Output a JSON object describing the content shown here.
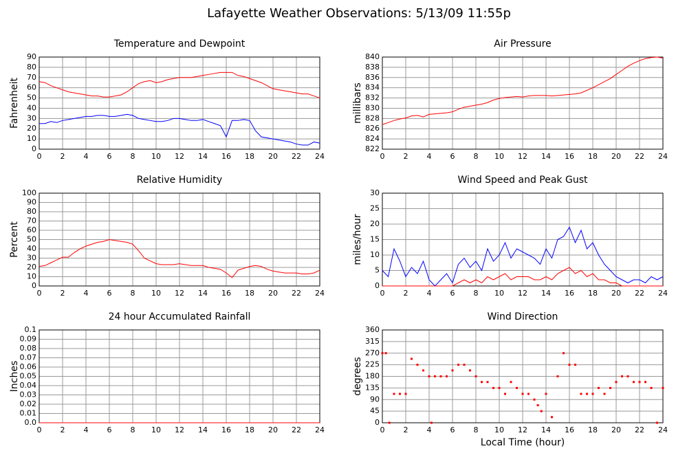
{
  "title": "Lafayette Weather Observations: 5/13/09 11:55p",
  "chart_data": [
    {
      "type": "line",
      "title": "Temperature and Dewpoint",
      "ylabel": "Fahrenheit",
      "x": [
        0,
        0.5,
        1,
        1.5,
        2,
        2.5,
        3,
        3.5,
        4,
        4.5,
        5,
        5.5,
        6,
        6.5,
        7,
        7.5,
        8,
        8.5,
        9,
        9.5,
        10,
        10.5,
        11,
        11.5,
        12,
        12.5,
        13,
        13.5,
        14,
        14.5,
        15,
        15.5,
        16,
        16.5,
        17,
        17.5,
        18,
        18.5,
        19,
        19.5,
        20,
        20.5,
        21,
        21.5,
        22,
        22.5,
        23,
        23.5,
        24
      ],
      "series": [
        {
          "color": "#ff0000",
          "values": [
            66,
            65,
            62,
            60,
            58,
            56,
            55,
            54,
            53,
            52,
            52,
            51,
            51,
            52,
            53,
            56,
            60,
            64,
            66,
            67,
            65,
            66,
            68,
            69,
            70,
            70,
            70,
            71,
            72,
            73,
            74,
            75,
            75,
            75,
            72,
            71,
            69,
            67,
            65,
            62,
            59,
            58,
            57,
            56,
            55,
            54,
            54,
            52,
            50
          ]
        },
        {
          "color": "#0000ff",
          "values": [
            25,
            25,
            27,
            26,
            28,
            29,
            30,
            31,
            32,
            32,
            33,
            33,
            32,
            32,
            33,
            34,
            33,
            30,
            29,
            28,
            27,
            27,
            28,
            30,
            30,
            29,
            28,
            28,
            29,
            27,
            25,
            23,
            12,
            28,
            28,
            29,
            28,
            18,
            12,
            11,
            10,
            9,
            8,
            7,
            5,
            4,
            4,
            7,
            6
          ]
        }
      ],
      "xlim": [
        0,
        24
      ],
      "xticks": [
        0,
        2,
        4,
        6,
        8,
        10,
        12,
        14,
        16,
        18,
        20,
        22,
        24
      ],
      "ylim": [
        0,
        90
      ],
      "yticks": [
        0,
        10,
        20,
        30,
        40,
        50,
        60,
        70,
        80,
        90
      ],
      "grid": true
    },
    {
      "type": "line",
      "title": "Air Pressure",
      "ylabel": "millibars",
      "x": [
        0,
        0.5,
        1,
        1.5,
        2,
        2.5,
        3,
        3.5,
        4,
        4.5,
        5,
        5.5,
        6,
        6.5,
        7,
        7.5,
        8,
        8.5,
        9,
        9.5,
        10,
        10.5,
        11,
        11.5,
        12,
        12.5,
        13,
        13.5,
        14,
        14.5,
        15,
        15.5,
        16,
        16.5,
        17,
        17.5,
        18,
        18.5,
        19,
        19.5,
        20,
        20.5,
        21,
        21.5,
        22,
        22.5,
        23,
        23.5,
        24
      ],
      "series": [
        {
          "color": "#ff0000",
          "values": [
            826.8,
            827.2,
            827.6,
            827.9,
            828.1,
            828.5,
            828.6,
            828.3,
            828.8,
            828.9,
            829.0,
            829.1,
            829.3,
            829.8,
            830.2,
            830.4,
            830.6,
            830.8,
            831.1,
            831.6,
            831.9,
            832.1,
            832.2,
            832.3,
            832.2,
            832.4,
            832.5,
            832.5,
            832.5,
            832.4,
            832.5,
            832.6,
            832.7,
            832.8,
            833.0,
            833.5,
            834.0,
            834.6,
            835.2,
            835.8,
            836.6,
            837.4,
            838.2,
            838.8,
            839.3,
            839.7,
            839.9,
            840.0,
            839.8
          ]
        }
      ],
      "xlim": [
        0,
        24
      ],
      "xticks": [
        0,
        2,
        4,
        6,
        8,
        10,
        12,
        14,
        16,
        18,
        20,
        22,
        24
      ],
      "ylim": [
        822,
        840
      ],
      "yticks": [
        822,
        824,
        826,
        828,
        830,
        832,
        834,
        836,
        838,
        840
      ],
      "grid": true
    },
    {
      "type": "line",
      "title": "Relative Humidity",
      "ylabel": "Percent",
      "x": [
        0,
        0.5,
        1,
        1.5,
        2,
        2.5,
        3,
        3.5,
        4,
        4.5,
        5,
        5.5,
        6,
        6.5,
        7,
        7.5,
        8,
        8.5,
        9,
        9.5,
        10,
        10.5,
        11,
        11.5,
        12,
        12.5,
        13,
        13.5,
        14,
        14.5,
        15,
        15.5,
        16,
        16.5,
        17,
        17.5,
        18,
        18.5,
        19,
        19.5,
        20,
        20.5,
        21,
        21.5,
        22,
        22.5,
        23,
        23.5,
        24
      ],
      "series": [
        {
          "color": "#ff0000",
          "values": [
            21,
            22,
            25,
            28,
            31,
            31,
            36,
            40,
            43,
            45,
            47,
            48,
            50,
            49,
            48,
            47,
            45,
            38,
            30,
            27,
            24,
            23,
            23,
            23,
            24,
            23,
            22,
            22,
            22,
            20,
            19,
            18,
            14,
            9,
            17,
            19,
            21,
            22,
            21,
            18,
            16,
            15,
            14,
            14,
            14,
            13,
            13,
            14,
            17
          ]
        }
      ],
      "xlim": [
        0,
        24
      ],
      "xticks": [
        0,
        2,
        4,
        6,
        8,
        10,
        12,
        14,
        16,
        18,
        20,
        22,
        24
      ],
      "ylim": [
        0,
        100
      ],
      "yticks": [
        0,
        10,
        20,
        30,
        40,
        50,
        60,
        70,
        80,
        90,
        100
      ],
      "grid": true
    },
    {
      "type": "line",
      "title": "Wind Speed and Peak Gust",
      "ylabel": "miles/hour",
      "x": [
        0,
        0.5,
        1,
        1.5,
        2,
        2.5,
        3,
        3.5,
        4,
        4.5,
        5,
        5.5,
        6,
        6.5,
        7,
        7.5,
        8,
        8.5,
        9,
        9.5,
        10,
        10.5,
        11,
        11.5,
        12,
        12.5,
        13,
        13.5,
        14,
        14.5,
        15,
        15.5,
        16,
        16.5,
        17,
        17.5,
        18,
        18.5,
        19,
        19.5,
        20,
        20.5,
        21,
        21.5,
        22,
        22.5,
        23,
        23.5,
        24
      ],
      "series": [
        {
          "color": "#0000ff",
          "values": [
            5,
            3,
            12,
            8,
            3,
            6,
            4,
            8,
            2,
            0,
            2,
            4,
            1,
            7,
            9,
            6,
            8,
            5,
            12,
            8,
            10,
            14,
            9,
            12,
            11,
            10,
            9,
            7,
            12,
            9,
            15,
            16,
            19,
            14,
            18,
            12,
            14,
            10,
            7,
            5,
            3,
            2,
            1,
            2,
            2,
            1,
            3,
            2,
            3
          ]
        },
        {
          "color": "#ff0000",
          "values": [
            0,
            0,
            0,
            0,
            0,
            0,
            0,
            0,
            0,
            0,
            0,
            0,
            0,
            1,
            2,
            1,
            2,
            1,
            3,
            2,
            3,
            4,
            2,
            3,
            3,
            3,
            2,
            2,
            3,
            2,
            4,
            5,
            6,
            4,
            5,
            3,
            4,
            2,
            2,
            1,
            1,
            0,
            0,
            0,
            0,
            0,
            0,
            0,
            0
          ]
        }
      ],
      "xlim": [
        0,
        24
      ],
      "xticks": [
        0,
        2,
        4,
        6,
        8,
        10,
        12,
        14,
        16,
        18,
        20,
        22,
        24
      ],
      "ylim": [
        0,
        30
      ],
      "yticks": [
        0,
        5,
        10,
        15,
        20,
        25,
        30
      ],
      "grid": true
    },
    {
      "type": "line",
      "title": "24 hour Accumulated Rainfall",
      "ylabel": "Inches",
      "x": [
        0,
        24
      ],
      "series": [
        {
          "color": "#ff0000",
          "values": [
            0,
            0
          ]
        }
      ],
      "xlim": [
        0,
        24
      ],
      "xticks": [
        0,
        2,
        4,
        6,
        8,
        10,
        12,
        14,
        16,
        18,
        20,
        22,
        24
      ],
      "ylim": [
        0,
        0.1
      ],
      "yticks": [
        {
          "value": 0,
          "label": "0.0"
        },
        0.01,
        0.02,
        0.03,
        0.04,
        0.05,
        0.06,
        0.07,
        0.08,
        0.09,
        0.1
      ],
      "grid": true
    },
    {
      "type": "scatter",
      "title": "Wind Direction",
      "ylabel": "degrees",
      "xlabel": "Local Time (hour)",
      "x": [
        0,
        0.3,
        0.6,
        1,
        1.5,
        2,
        2.5,
        3,
        3.5,
        4,
        4.2,
        4.5,
        5,
        5.5,
        6,
        6.5,
        7,
        7.5,
        8,
        8.5,
        9,
        9.5,
        10,
        10.5,
        11,
        11.5,
        12,
        12.5,
        13,
        13.3,
        13.6,
        14,
        14.5,
        15,
        15.5,
        16,
        16.5,
        17,
        17.5,
        18,
        18.5,
        19,
        19.5,
        20,
        20.5,
        21,
        21.5,
        22,
        22.5,
        23,
        23.5,
        24
      ],
      "series": [
        {
          "color": "#ff0000",
          "values": [
            270,
            270,
            0,
            112,
            112,
            112,
            248,
            225,
            203,
            180,
            0,
            180,
            180,
            180,
            203,
            225,
            225,
            203,
            180,
            158,
            158,
            135,
            135,
            112,
            158,
            135,
            112,
            112,
            90,
            68,
            45,
            112,
            22,
            180,
            270,
            225,
            225,
            112,
            112,
            112,
            135,
            112,
            135,
            158,
            180,
            180,
            158,
            158,
            158,
            135,
            0,
            135
          ]
        }
      ],
      "xlim": [
        0,
        24
      ],
      "xticks": [
        0,
        2,
        4,
        6,
        8,
        10,
        12,
        14,
        16,
        18,
        20,
        22,
        24
      ],
      "ylim": [
        0,
        360
      ],
      "yticks": [
        0,
        45,
        90,
        135,
        180,
        225,
        270,
        315,
        360
      ],
      "grid": true
    }
  ]
}
